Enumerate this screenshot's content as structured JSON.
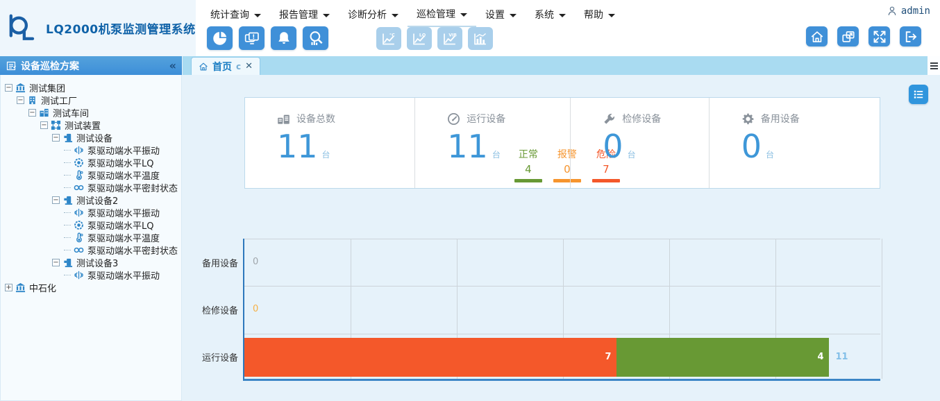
{
  "app": {
    "title": "LQ2000机泵监测管理系统",
    "user": "admin"
  },
  "menu": {
    "active_index": 3,
    "items": [
      {
        "label": "统计查询"
      },
      {
        "label": "报告管理"
      },
      {
        "label": "诊断分析"
      },
      {
        "label": "巡检管理"
      },
      {
        "label": "设置"
      },
      {
        "label": "系统"
      },
      {
        "label": "帮助"
      }
    ]
  },
  "toolbar": {
    "quick_icons": [
      "pie-chart-icon",
      "multi-screen-alert-icon",
      "bell-icon",
      "search-stats-icon"
    ],
    "trend_icons_disabled": [
      "temp-trend-icon",
      "lq-trend-icon",
      "vib-trend-icon",
      "bar-trend-icon"
    ],
    "window_icons": [
      "home-icon",
      "popout-window-icon",
      "fullscreen-icon",
      "logout-icon"
    ]
  },
  "tabs": {
    "items": [
      {
        "label": "首页",
        "icons": [
          "home-icon",
          "refresh-icon",
          "close-icon"
        ]
      }
    ]
  },
  "sidebar": {
    "title": "设备巡检方案",
    "collapse_icon": "«",
    "tree": [
      {
        "label": "测试集团",
        "depth": 0,
        "icon": "bank",
        "expander": "minus"
      },
      {
        "label": "测试工厂",
        "depth": 1,
        "icon": "factory",
        "expander": "minus"
      },
      {
        "label": "测试车间",
        "depth": 2,
        "icon": "workshop",
        "expander": "minus"
      },
      {
        "label": "测试装置",
        "depth": 3,
        "icon": "unit",
        "expander": "minus"
      },
      {
        "label": "测试设备",
        "depth": 4,
        "icon": "device",
        "expander": "minus"
      },
      {
        "label": "泵驱动端水平振动",
        "depth": 5,
        "icon": "vibration"
      },
      {
        "label": "泵驱动端水平LQ",
        "depth": 5,
        "icon": "lq"
      },
      {
        "label": "泵驱动端水平温度",
        "depth": 5,
        "icon": "temp"
      },
      {
        "label": "泵驱动端水平密封状态",
        "depth": 5,
        "icon": "seal"
      },
      {
        "label": "测试设备2",
        "depth": 4,
        "icon": "device",
        "expander": "minus"
      },
      {
        "label": "泵驱动端水平振动",
        "depth": 5,
        "icon": "vibration"
      },
      {
        "label": "泵驱动端水平LQ",
        "depth": 5,
        "icon": "lq"
      },
      {
        "label": "泵驱动端水平温度",
        "depth": 5,
        "icon": "temp"
      },
      {
        "label": "泵驱动端水平密封状态",
        "depth": 5,
        "icon": "seal"
      },
      {
        "label": "测试设备3",
        "depth": 4,
        "icon": "device",
        "expander": "minus"
      },
      {
        "label": "泵驱动端水平振动",
        "depth": 5,
        "icon": "vibration"
      },
      {
        "label": "中石化",
        "depth": 0,
        "icon": "bank",
        "expander": "plus"
      }
    ]
  },
  "stats": {
    "cards": [
      {
        "icon": "devices",
        "label": "设备总数",
        "value": "11",
        "unit": "台"
      },
      {
        "icon": "gauge",
        "label": "运行设备",
        "value": "11",
        "unit": "台",
        "breakdown": [
          {
            "label": "正常",
            "value": "4",
            "color": "#689934"
          },
          {
            "label": "报警",
            "value": "0",
            "color": "#f6952e"
          },
          {
            "label": "危险",
            "value": "7",
            "color": "#f4582a"
          }
        ]
      },
      {
        "icon": "wrench",
        "label": "检修设备",
        "value": "0",
        "unit": "台"
      },
      {
        "icon": "gear",
        "label": "备用设备",
        "value": "0",
        "unit": "台"
      }
    ]
  },
  "chart_data": {
    "type": "bar",
    "orientation": "horizontal",
    "stacked": true,
    "grid": true,
    "categories": [
      "备用设备",
      "检修设备",
      "运行设备"
    ],
    "series": [
      {
        "name": "危险",
        "color": "#f4582a",
        "values": [
          0,
          0,
          7
        ]
      },
      {
        "name": "正常",
        "color": "#689934",
        "values": [
          0,
          0,
          4
        ]
      }
    ],
    "totals": [
      0,
      0,
      11
    ],
    "total_label_color": "#82bfe8",
    "zero_label_colors": [
      "#a0a6ab",
      "#f6b044",
      ""
    ],
    "xlim": [
      0,
      12
    ],
    "grid_step": 2,
    "axis_color": "#3c86c6"
  }
}
